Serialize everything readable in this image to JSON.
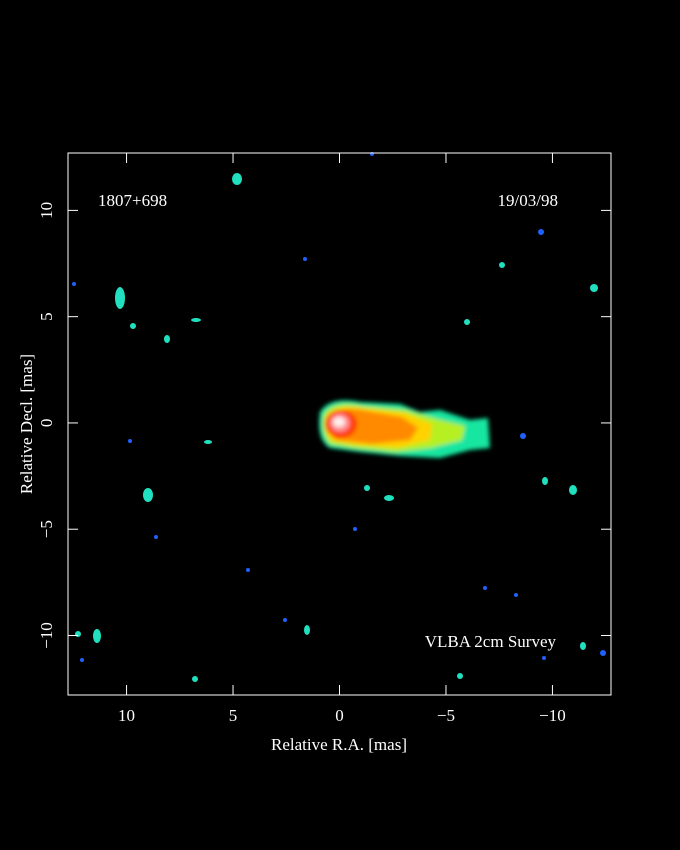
{
  "chart_data": {
    "type": "image",
    "source": "1807+698",
    "date": "19/03/98",
    "credit": "VLBA 2cm Survey",
    "x_label": "Relative R.A. [mas]",
    "y_label": "Relative Decl. [mas]",
    "xlim": [
      12.75,
      -12.75
    ],
    "ylim": [
      -12.8,
      12.7
    ],
    "xticks": [
      10,
      5,
      0,
      {
        "value": -5,
        "label": "−5"
      },
      {
        "value": -10,
        "label": "−10"
      }
    ],
    "yticks": [
      {
        "value": -10,
        "label": "−10"
      },
      {
        "value": -5,
        "label": "−5"
      },
      0,
      5,
      10
    ]
  }
}
